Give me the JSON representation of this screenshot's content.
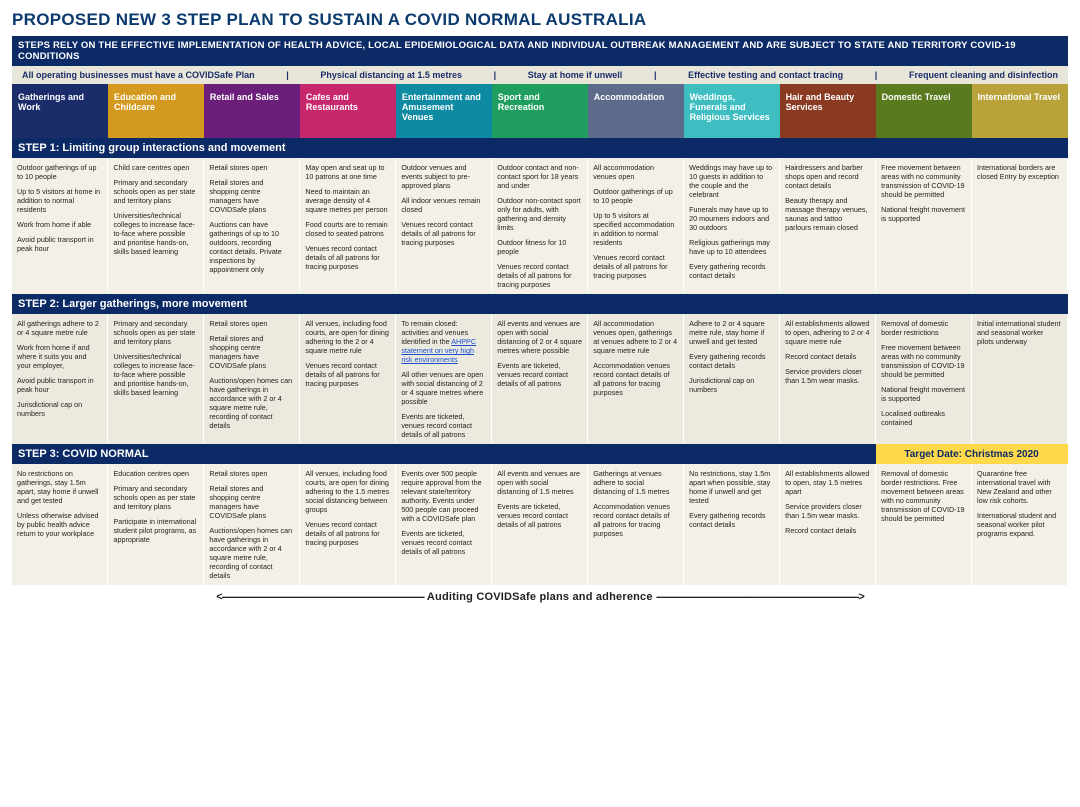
{
  "title": "PROPOSED NEW 3 STEP PLAN TO SUSTAIN A COVID NORMAL AUSTRALIA",
  "subtitle": "STEPS RELY ON THE  EFFECTIVE IMPLEMENTATION OF HEALTH ADVICE, LOCAL EPIDEMIOLOGICAL DATA AND INDIVIDUAL OUTBREAK MANAGEMENT AND ARE SUBJECT TO STATE AND TERRITORY COVID-19 CONDITIONS",
  "conditions": [
    "All operating businesses must have a COVIDSafe Plan",
    "Physical distancing at 1.5 metres",
    "Stay at home if unwell",
    "Effective testing and contact tracing",
    "Frequent cleaning and disinfection"
  ],
  "categories": [
    {
      "label": "Gatherings and Work",
      "color": "#1b2c6b"
    },
    {
      "label": "Education and Childcare",
      "color": "#d49a1f"
    },
    {
      "label": "Retail and Sales",
      "color": "#6b1e7a"
    },
    {
      "label": "Cafes and Restaurants",
      "color": "#c7286d"
    },
    {
      "label": "Entertainment and Amusement Venues",
      "color": "#0e8aa3"
    },
    {
      "label": "Sport and Recreation",
      "color": "#1f9e5f"
    },
    {
      "label": "Accommodation",
      "color": "#5c6b8a"
    },
    {
      "label": "Weddings, Funerals and Religious Services",
      "color": "#3fbec2"
    },
    {
      "label": "Hair and Beauty Services",
      "color": "#8a3a21"
    },
    {
      "label": "Domestic Travel",
      "color": "#5a7a1f"
    },
    {
      "label": "International Travel",
      "color": "#b9a23a"
    }
  ],
  "steps": {
    "step1": {
      "label": "STEP 1: Limiting group interactions and movement"
    },
    "step2": {
      "label": "STEP 2: Larger gatherings, more movement"
    },
    "step3": {
      "label": "STEP 3:  COVID NORMAL",
      "target_prefix": "Target Date",
      "target_value": ": Christmas 2020"
    }
  },
  "cells": {
    "s1": [
      [
        "Outdoor gatherings of up to 10 people",
        "Up to 5 visitors at home in addition to normal residents",
        "Work from home if able",
        "Avoid public transport in peak hour"
      ],
      [
        "Child care centres open",
        "Primary and secondary schools open as per state and territory plans",
        "Universities/technical colleges to increase face-to-face where possible and prioritise hands-on, skills based learning"
      ],
      [
        "Retail stores open",
        "Retail stores and shopping centre managers have COVIDSafe plans",
        "Auctions can have gatherings of up to 10 outdoors, recording contact details. Private inspections by appointment only"
      ],
      [
        "May open and seat up to 10 patrons at one time",
        "Need to maintain an average density of 4 square metres per person",
        "Food courts are to remain closed to seated patrons",
        "Venues record contact details of all patrons for tracing purposes"
      ],
      [
        "Outdoor venues and events subject to pre-approved plans",
        "All indoor venues remain closed",
        "Venues record contact details of all patrons for tracing purposes"
      ],
      [
        "Outdoor contact and non-contact sport for 18 years and under",
        "Outdoor non-contact sport only for adults, with gathering and density limits",
        "Outdoor fitness for 10 people",
        "Venues record contact details of all patrons for tracing purposes"
      ],
      [
        "All accommodation venues open",
        "Outdoor gatherings of up to 10 people",
        "Up to 5 visitors at specified accommodation in addition to normal residents",
        "Venues record contact details of all patrons for tracing purposes"
      ],
      [
        "Weddings may have up to 10 guests in addition to the couple and the celebrant",
        "Funerals may have up to 20 mourners indoors and 30 outdoors",
        "Religious gatherings may have up to 10 attendees",
        "Every gathering records contact details"
      ],
      [
        "Hairdressers and barber shops open and record contact details",
        "Beauty therapy and massage therapy venues, saunas and tattoo parlours remain closed"
      ],
      [
        "Free movement between areas with no community transmission of COVID-19 should be permitted",
        "National freight movement is supported"
      ],
      [
        "International borders are closed Entry by exception"
      ]
    ],
    "s2": [
      [
        "All gatherings adhere to 2 or 4 square metre rule",
        "Work from home if and where it suits you and your employer,",
        "Avoid public transport in peak hour",
        "Jurisdictional cap on numbers"
      ],
      [
        "Primary and secondary schools open as per state and territory plans",
        "Universities/technical colleges to increase face-to-face where possible and prioritise hands-on, skills based learning"
      ],
      [
        "Retail stores open",
        "Retail stores and shopping centre managers have COVIDSafe plans",
        "Auctions/open homes can have gatherings in accordance with 2 or 4 square metre rule, recording of contact details"
      ],
      [
        "All venues, including food courts, are open for dining adhering to the 2 or 4 square metre rule",
        "Venues record contact details of all patrons for tracing purposes"
      ],
      [
        "To remain closed: activities and venues identified in the <a data-name='ahppc-link' data-interactable='true'>AHPPC statement on very high risk environments</a>",
        "All other venues are open with social distancing of 2 or 4 square metres where possible",
        "Events are ticketed, venues record contact details of all patrons"
      ],
      [
        "All events and venues are open with social distancing of 2 or 4 square metres where possible",
        "Events are ticketed, venues record contact details of all patrons"
      ],
      [
        "All accommodation venues open, gatherings at venues adhere to 2 or 4 square metre rule",
        "Accommodation venues record contact details of all patrons for tracing purposes"
      ],
      [
        "Adhere to 2 or 4 square metre rule, stay home if unwell and get tested",
        "Every gathering records contact details",
        "Jurisdictional cap on numbers"
      ],
      [
        "All establishments allowed to open, adhering to 2 or 4 square metre rule",
        "Record contact details",
        "Service providers closer than 1.5m wear masks."
      ],
      [
        "Removal of domestic border restrictions",
        "Free movement between areas with no community transmission of COVID-19 should be permitted",
        "National freight movement is supported",
        "Localised outbreaks contained"
      ],
      [
        "Initial international student and seasonal worker pilots underway"
      ]
    ],
    "s3": [
      [
        "No restrictions on gatherings, stay 1.5m apart, stay home if unwell and get tested",
        "Unless otherwise advised by public health advice return to your workplace"
      ],
      [
        "Education centres open",
        "Primary and secondary schools open as per state and territory plans",
        "Participate in international student pilot programs, as appropriate"
      ],
      [
        "Retail stores open",
        "Retail stores and shopping centre managers have COVIDSafe plans",
        "Auctions/open homes can have gatherings in accordance with 2 or 4 square metre rule, recording of contact details"
      ],
      [
        "All venues, including food courts, are open for dining adhering to the 1.5 metres social distancing between groups",
        "Venues record contact details of all patrons for tracing purposes"
      ],
      [
        "Events over 500 people require approval from the relevant state/territory authority. Events under 500 people can proceed with a COVIDSafe plan",
        "Events are ticketed, venues record contact details of all patrons"
      ],
      [
        "All events and venues are open with social distancing of 1.5 metres",
        "Events are ticketed, venues record contact details of all patrons"
      ],
      [
        "Gatherings at venues adhere to social distancing of 1.5 metres",
        "Accommodation venues record contact details of all patrons for tracing purposes"
      ],
      [
        "No restrictions, stay 1.5m apart when possible, stay home if unwell and get tested",
        "Every gathering records contact details"
      ],
      [
        "All establishments allowed to open, stay 1.5 metres apart",
        "Service providers closer than 1.5m wear masks.",
        "Record contact details"
      ],
      [
        "Removal of domestic border restrictions. Free movement between areas with no community transmission of COVID-19 should be permitted"
      ],
      [
        "Quarantine free international travel with New Zealand and other low risk cohorts.",
        "International student and seasonal worker pilot programs expand."
      ]
    ]
  },
  "footer": {
    "dash_left": "<----------------------------------------------------------------------------",
    "text": "Auditing COVIDSafe plans and adherence",
    "dash_right": "---------------------------------------------------------------------------->"
  }
}
